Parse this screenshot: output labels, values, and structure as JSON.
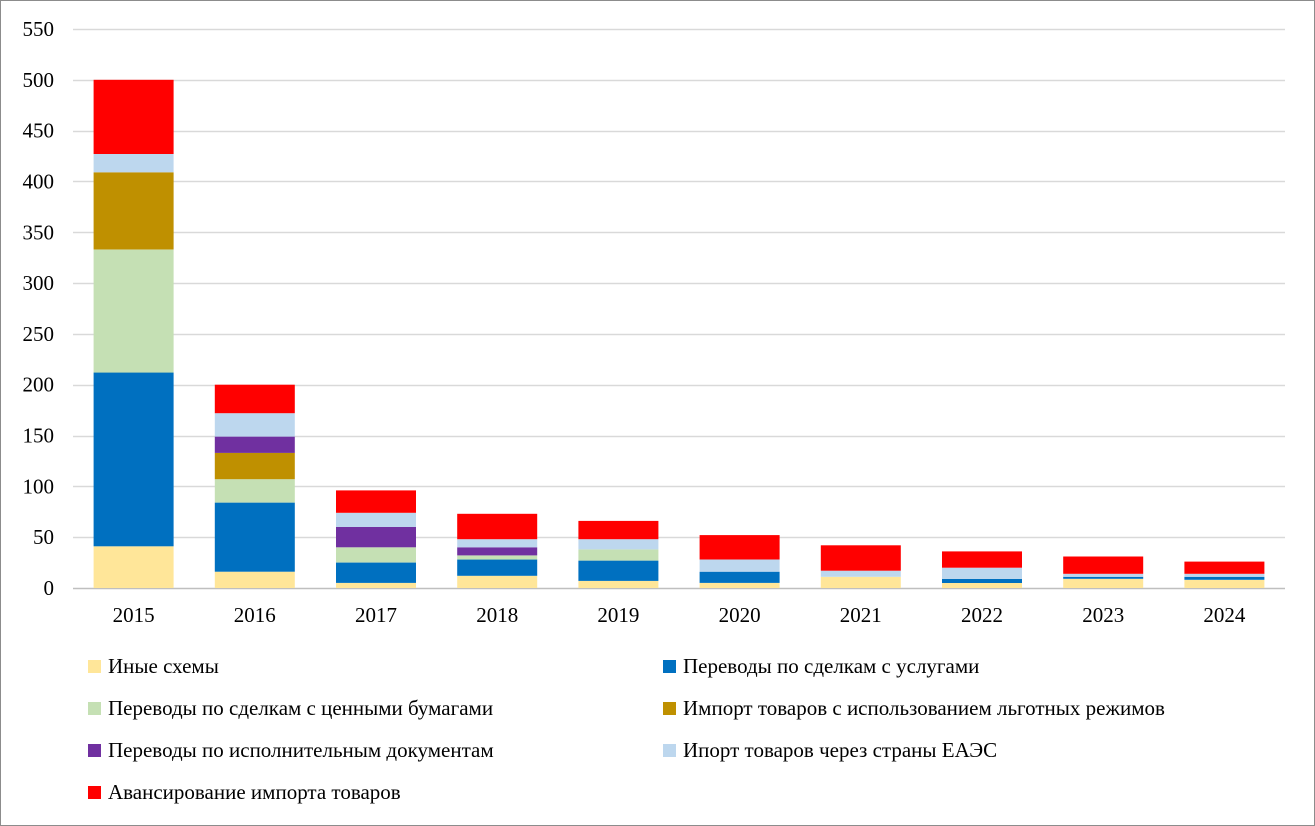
{
  "chart_data": {
    "type": "bar",
    "stacked": true,
    "title": "",
    "xlabel": "",
    "ylabel": "",
    "ylim": [
      0,
      550
    ],
    "yticks": [
      0,
      50,
      100,
      150,
      200,
      250,
      300,
      350,
      400,
      450,
      500,
      550
    ],
    "grid": true,
    "legend_position": "bottom",
    "categories": [
      "2015",
      "2016",
      "2017",
      "2018",
      "2019",
      "2020",
      "2021",
      "2022",
      "2023",
      "2024"
    ],
    "series": [
      {
        "name": "Иные схемы",
        "color": "#FFE699",
        "values": [
          41,
          16,
          5,
          12,
          7,
          5,
          11,
          5,
          9,
          8
        ]
      },
      {
        "name": "Переводы по сделкам с услугами",
        "color": "#0070C0",
        "values": [
          171,
          68,
          20,
          16,
          20,
          11,
          0,
          4,
          2,
          3
        ]
      },
      {
        "name": "Переводы по сделкам с ценными бумагами",
        "color": "#C5E0B4",
        "values": [
          121,
          23,
          15,
          4,
          11,
          0,
          0,
          0,
          0,
          0
        ]
      },
      {
        "name": "Импорт товаров с использованием льготных режимов",
        "color": "#BF9000",
        "values": [
          76,
          26,
          0,
          0,
          0,
          0,
          0,
          0,
          0,
          0
        ]
      },
      {
        "name": "Переводы по исполнительным документам",
        "color": "#7030A0",
        "values": [
          0,
          16,
          20,
          8,
          0,
          0,
          0,
          0,
          0,
          0
        ]
      },
      {
        "name": "Ипорт товаров через страны ЕАЭС",
        "color": "#BDD7EE",
        "values": [
          18,
          23,
          14,
          8,
          10,
          12,
          6,
          11,
          3,
          3
        ]
      },
      {
        "name": "Авансирование импорта товаров",
        "color": "#FF0000",
        "values": [
          73,
          28,
          22,
          25,
          18,
          24,
          25,
          16,
          17,
          12
        ]
      }
    ],
    "legend_order": [
      0,
      1,
      2,
      3,
      4,
      5,
      6
    ],
    "gridline_color": "#D9D9D9",
    "axis_color": "#BFBFBF"
  }
}
